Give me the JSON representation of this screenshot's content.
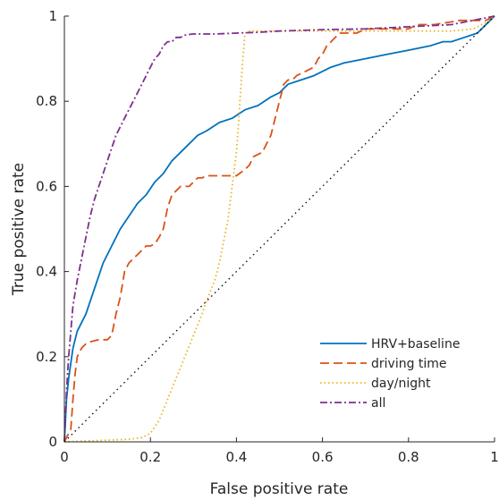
{
  "chart_data": {
    "type": "line",
    "title": "",
    "xlabel": "False positive rate",
    "ylabel": "True positive rate",
    "xlim": [
      0,
      1
    ],
    "ylim": [
      0,
      1
    ],
    "xticks": [
      "0",
      "0.2",
      "0.4",
      "0.6",
      "0.8",
      "1"
    ],
    "yticks": [
      "0",
      "0.2",
      "0.4",
      "0.6",
      "0.8",
      "1"
    ],
    "grid": false,
    "legend_position": "bottom-right",
    "series": [
      {
        "name": "HRV+baseline",
        "color": "#0072BD",
        "style": "solid",
        "x": [
          0,
          0.005,
          0.01,
          0.02,
          0.03,
          0.05,
          0.07,
          0.09,
          0.11,
          0.13,
          0.15,
          0.17,
          0.19,
          0.21,
          0.23,
          0.25,
          0.27,
          0.29,
          0.31,
          0.33,
          0.36,
          0.39,
          0.42,
          0.45,
          0.48,
          0.5,
          0.52,
          0.55,
          0.58,
          0.62,
          0.65,
          0.7,
          0.75,
          0.8,
          0.85,
          0.88,
          0.9,
          0.93,
          0.96,
          0.98,
          1.0
        ],
        "y": [
          0,
          0.1,
          0.15,
          0.22,
          0.26,
          0.3,
          0.36,
          0.42,
          0.46,
          0.5,
          0.53,
          0.56,
          0.58,
          0.61,
          0.63,
          0.66,
          0.68,
          0.7,
          0.72,
          0.73,
          0.75,
          0.76,
          0.78,
          0.79,
          0.81,
          0.82,
          0.84,
          0.85,
          0.86,
          0.88,
          0.89,
          0.9,
          0.91,
          0.92,
          0.93,
          0.94,
          0.94,
          0.95,
          0.96,
          0.98,
          1.0
        ]
      },
      {
        "name": "driving time",
        "color": "#D95319",
        "style": "dashed",
        "x": [
          0,
          0.015,
          0.02,
          0.025,
          0.03,
          0.04,
          0.05,
          0.06,
          0.08,
          0.1,
          0.11,
          0.12,
          0.13,
          0.14,
          0.15,
          0.16,
          0.17,
          0.18,
          0.19,
          0.2,
          0.21,
          0.22,
          0.23,
          0.24,
          0.25,
          0.26,
          0.27,
          0.28,
          0.29,
          0.3,
          0.31,
          0.32,
          0.33,
          0.36,
          0.38,
          0.4,
          0.42,
          0.43,
          0.44,
          0.46,
          0.48,
          0.49,
          0.5,
          0.51,
          0.52,
          0.53,
          0.54,
          0.56,
          0.58,
          0.59,
          0.6,
          0.61,
          0.62,
          0.63,
          0.64,
          0.66,
          0.68,
          0.7,
          0.72,
          0.8,
          0.82,
          0.86,
          0.92,
          0.98,
          1.0
        ],
        "y": [
          0,
          0.03,
          0.1,
          0.16,
          0.2,
          0.22,
          0.23,
          0.235,
          0.24,
          0.24,
          0.25,
          0.3,
          0.34,
          0.4,
          0.42,
          0.43,
          0.44,
          0.45,
          0.46,
          0.46,
          0.465,
          0.48,
          0.5,
          0.55,
          0.58,
          0.59,
          0.6,
          0.6,
          0.6,
          0.61,
          0.62,
          0.62,
          0.625,
          0.625,
          0.625,
          0.625,
          0.64,
          0.65,
          0.67,
          0.68,
          0.72,
          0.76,
          0.8,
          0.84,
          0.85,
          0.85,
          0.86,
          0.87,
          0.88,
          0.9,
          0.91,
          0.93,
          0.94,
          0.95,
          0.96,
          0.96,
          0.96,
          0.97,
          0.97,
          0.97,
          0.98,
          0.98,
          0.99,
          0.99,
          1.0
        ]
      },
      {
        "name": "day/night",
        "color": "#EDB120",
        "style": "dotted",
        "x": [
          0,
          0.05,
          0.1,
          0.15,
          0.18,
          0.2,
          0.22,
          0.24,
          0.26,
          0.28,
          0.3,
          0.32,
          0.33,
          0.35,
          0.36,
          0.37,
          0.38,
          0.39,
          0.4,
          0.405,
          0.41,
          0.415,
          0.42,
          0.43,
          0.5,
          0.6,
          0.7,
          0.8,
          0.9,
          0.95,
          0.98,
          1.0
        ],
        "y": [
          0,
          0.002,
          0.004,
          0.006,
          0.01,
          0.02,
          0.05,
          0.1,
          0.15,
          0.2,
          0.25,
          0.3,
          0.33,
          0.38,
          0.42,
          0.47,
          0.52,
          0.6,
          0.68,
          0.75,
          0.83,
          0.9,
          0.96,
          0.965,
          0.965,
          0.965,
          0.965,
          0.965,
          0.965,
          0.97,
          0.985,
          1.0
        ]
      },
      {
        "name": "all",
        "color": "#7E2F8E",
        "style": "dashdot",
        "x": [
          0,
          0.005,
          0.01,
          0.015,
          0.02,
          0.03,
          0.04,
          0.05,
          0.06,
          0.07,
          0.08,
          0.09,
          0.1,
          0.11,
          0.12,
          0.13,
          0.14,
          0.15,
          0.16,
          0.17,
          0.18,
          0.19,
          0.2,
          0.21,
          0.22,
          0.23,
          0.24,
          0.25,
          0.26,
          0.27,
          0.28,
          0.29,
          0.3,
          0.35,
          0.4,
          0.45,
          0.5,
          0.6,
          0.7,
          0.8,
          0.9,
          0.95,
          1.0
        ],
        "y": [
          0,
          0.12,
          0.2,
          0.26,
          0.32,
          0.38,
          0.43,
          0.48,
          0.53,
          0.57,
          0.6,
          0.63,
          0.66,
          0.69,
          0.72,
          0.74,
          0.76,
          0.78,
          0.8,
          0.82,
          0.84,
          0.86,
          0.88,
          0.9,
          0.91,
          0.93,
          0.94,
          0.94,
          0.95,
          0.95,
          0.955,
          0.957,
          0.958,
          0.958,
          0.96,
          0.962,
          0.965,
          0.968,
          0.97,
          0.975,
          0.98,
          0.99,
          1.0
        ]
      },
      {
        "name": "",
        "color": "#000000",
        "style": "dotted-fine",
        "x": [
          0,
          1
        ],
        "y": [
          0,
          1
        ]
      }
    ]
  }
}
